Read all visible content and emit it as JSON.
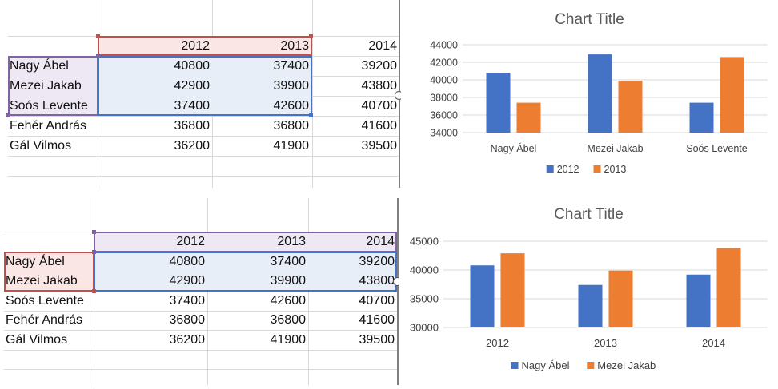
{
  "top": {
    "headers": [
      "2012",
      "2013",
      "2014"
    ],
    "rows": [
      {
        "name": "Nagy Ábel",
        "values": [
          "40800",
          "37400",
          "39200"
        ]
      },
      {
        "name": "Mezei Jakab",
        "values": [
          "42900",
          "39900",
          "43800"
        ]
      },
      {
        "name": "Soós Levente",
        "values": [
          "37400",
          "42600",
          "40700"
        ]
      },
      {
        "name": "Fehér András",
        "values": [
          "36800",
          "36800",
          "41600"
        ]
      },
      {
        "name": "Gál Vilmos",
        "values": [
          "36200",
          "41900",
          "39500"
        ]
      }
    ]
  },
  "bottom": {
    "headers": [
      "2012",
      "2013",
      "2014"
    ],
    "rows": [
      {
        "name": "Nagy Ábel",
        "values": [
          "40800",
          "37400",
          "39200"
        ]
      },
      {
        "name": "Mezei Jakab",
        "values": [
          "42900",
          "39900",
          "43800"
        ]
      },
      {
        "name": "Soós Levente",
        "values": [
          "37400",
          "42600",
          "40700"
        ]
      },
      {
        "name": "Fehér András",
        "values": [
          "36800",
          "36800",
          "41600"
        ]
      },
      {
        "name": "Gál Vilmos",
        "values": [
          "36200",
          "41900",
          "39500"
        ]
      }
    ]
  },
  "colors": {
    "series1": "#4472c4",
    "series2": "#ed7d31",
    "grid": "#d9d9d9",
    "axis_text": "#595959",
    "title_text": "#595959"
  },
  "chart_data": [
    {
      "type": "bar",
      "title": "Chart Title",
      "categories": [
        "Nagy Ábel",
        "Mezei Jakab",
        "Soós Levente"
      ],
      "series": [
        {
          "name": "2012",
          "values": [
            40800,
            42900,
            37400
          ]
        },
        {
          "name": "2013",
          "values": [
            37400,
            39900,
            42600
          ]
        }
      ],
      "ylim": [
        34000,
        44000
      ],
      "yticks": [
        "34000",
        "36000",
        "38000",
        "40000",
        "42000",
        "44000"
      ],
      "grid": true,
      "legend": "bottom"
    },
    {
      "type": "bar",
      "title": "Chart Title",
      "categories": [
        "2012",
        "2013",
        "2014"
      ],
      "series": [
        {
          "name": "Nagy Ábel",
          "values": [
            40800,
            37400,
            39200
          ]
        },
        {
          "name": "Mezei Jakab",
          "values": [
            42900,
            39900,
            43800
          ]
        }
      ],
      "ylim": [
        30000,
        45000
      ],
      "yticks": [
        "30000",
        "35000",
        "40000",
        "45000"
      ],
      "grid": true,
      "legend": "bottom"
    }
  ]
}
